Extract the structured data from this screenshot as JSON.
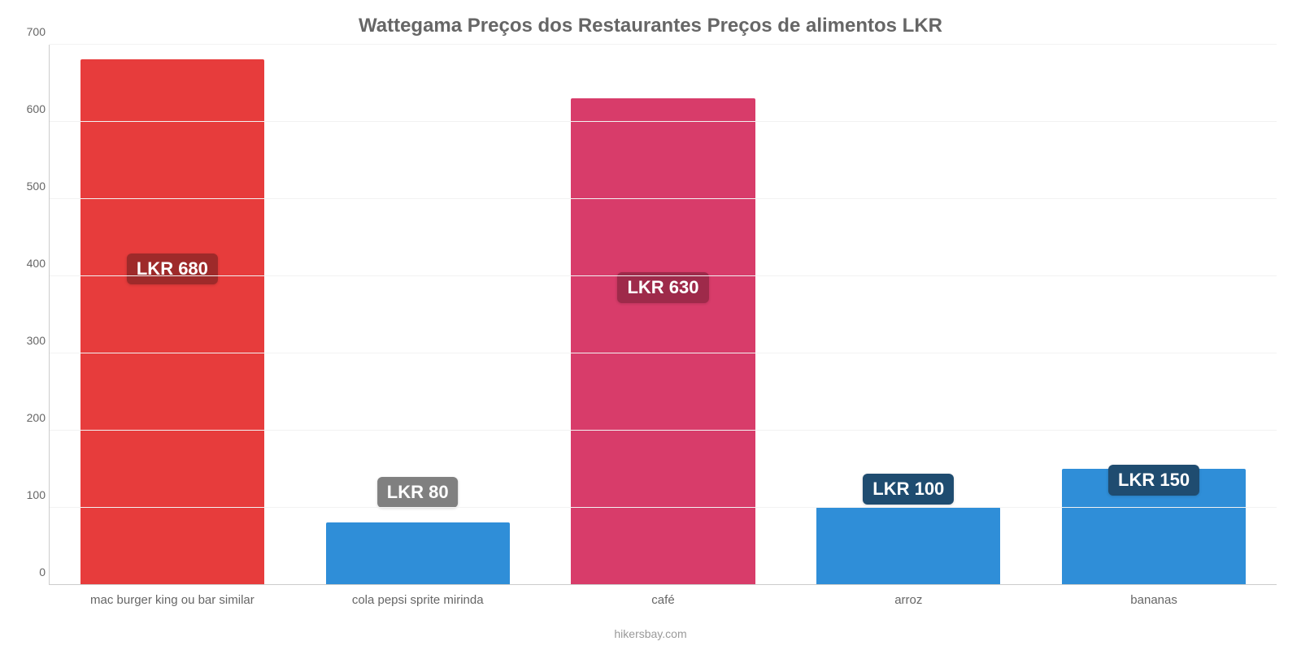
{
  "chart": {
    "type": "bar",
    "title": "Wattegama Preços dos Restaurantes Preços de alimentos LKR",
    "title_fontsize": 24,
    "title_color": "#666666",
    "background_color": "#ffffff",
    "grid_color": "#f2f2f2",
    "axis_color": "#cccccc",
    "axis_label_color": "#666666",
    "axis_label_fontsize": 14,
    "x_label_fontsize": 15,
    "value_badge_fontsize": 22,
    "ylim": [
      0,
      700
    ],
    "ytick_step": 100,
    "yticks": [
      0,
      100,
      200,
      300,
      400,
      500,
      600,
      700
    ],
    "bar_width": 0.75,
    "categories": [
      "mac burger king ou bar similar",
      "cola pepsi sprite mirinda",
      "café",
      "arroz",
      "bananas"
    ],
    "values": [
      680,
      80,
      630,
      100,
      150
    ],
    "value_labels": [
      "LKR 680",
      "LKR 80",
      "LKR 630",
      "LKR 100",
      "LKR 150"
    ],
    "bar_colors": [
      "#e73c3c",
      "#2f8ed8",
      "#d83c6a",
      "#2f8ed8",
      "#2f8ed8"
    ],
    "badge_colors": [
      "#9e2a2a",
      "#808080",
      "#9e2a4a",
      "#1f4c70",
      "#1f4c70"
    ],
    "badge_y_value": [
      370,
      80,
      345,
      84,
      96
    ],
    "attribution": "hikersbay.com"
  }
}
